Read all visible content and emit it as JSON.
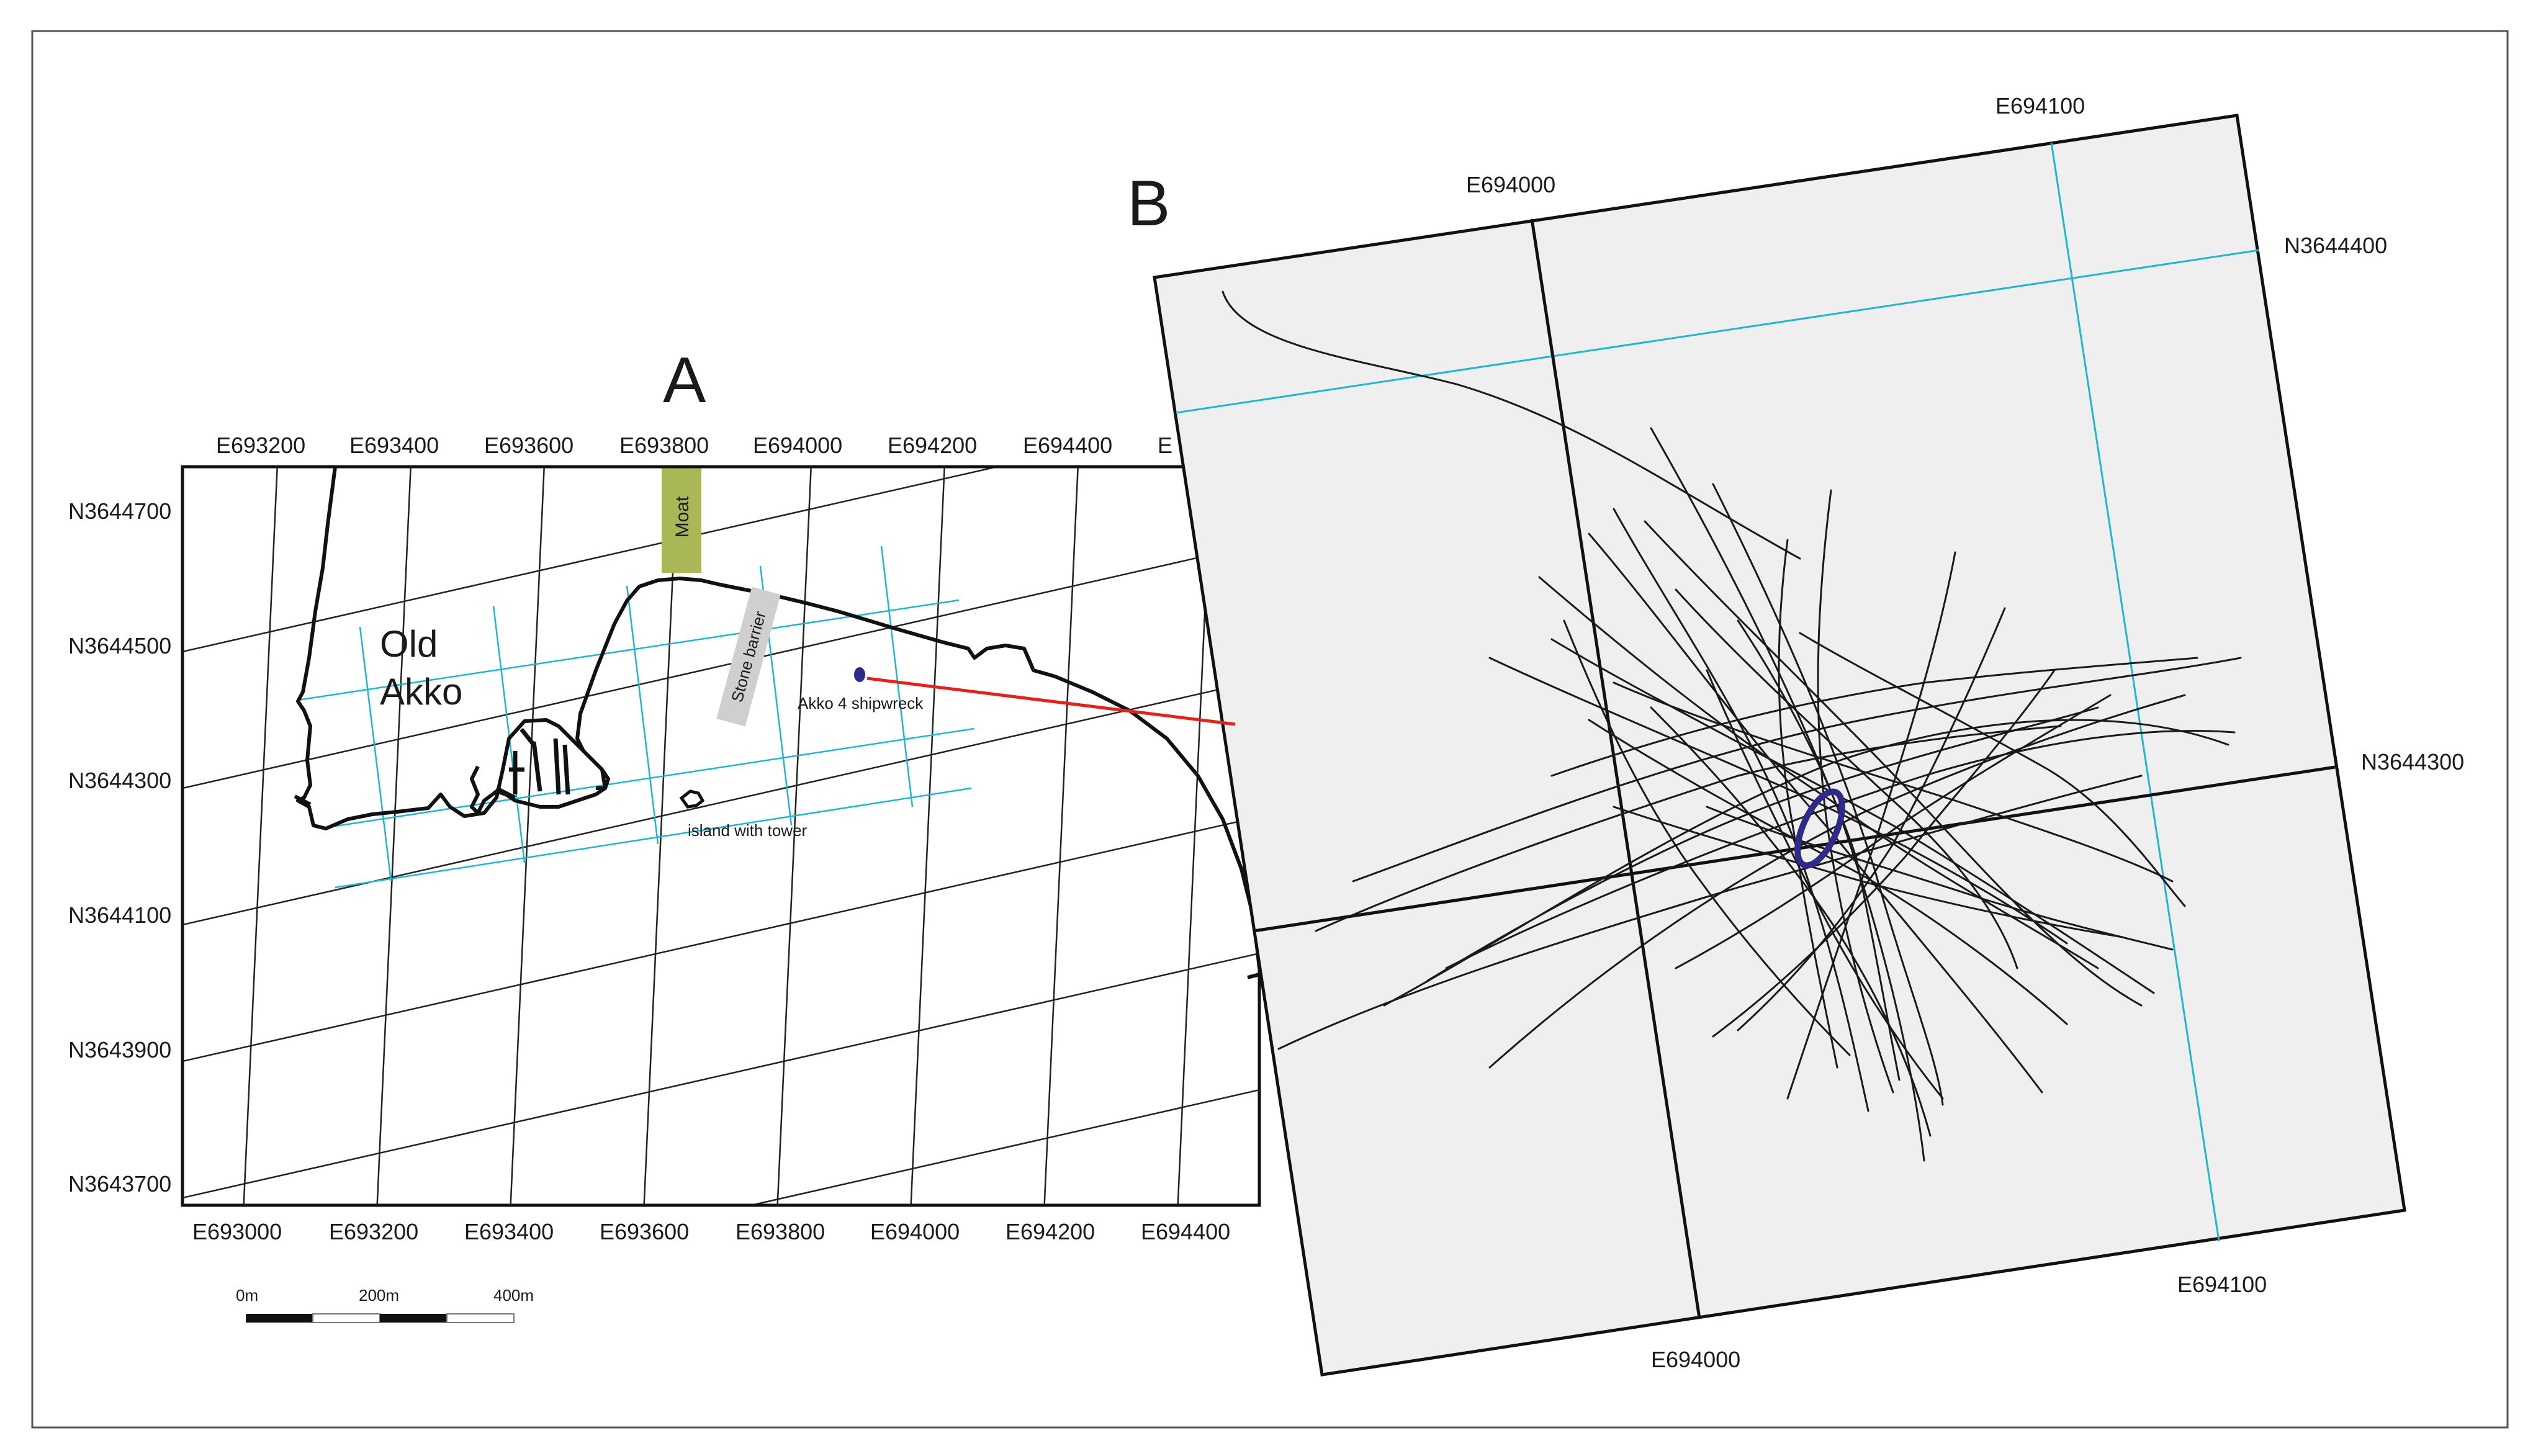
{
  "panel_a": {
    "letter": "A",
    "top_x_labels": [
      "E693200",
      "E693400",
      "E693600",
      "E693800",
      "E694000",
      "E694200",
      "E694400",
      "E"
    ],
    "bottom_x_labels": [
      "E693000",
      "E693200",
      "E693400",
      "E693600",
      "E693800",
      "E694000",
      "E694200",
      "E694400"
    ],
    "y_labels": [
      "N3644700",
      "N3644500",
      "N3644300",
      "N3644100",
      "N3643900",
      "N3643700"
    ],
    "place_line1": "Old",
    "place_line2": "Akko",
    "moat_label": "Moat",
    "stone_barrier_label": "Stone barrier",
    "shipwreck_label": "Akko 4 shipwreck",
    "island_label": "island with tower",
    "scale_labels": [
      "0m",
      "200m",
      "400m"
    ]
  },
  "panel_b": {
    "letter": "B",
    "labels": {
      "top_left_e": "E694000",
      "top_right_e": "E694100",
      "right_top_n": "N3644400",
      "right_mid_n": "N3644300",
      "bottom_right_e": "E694100",
      "bottom_mid_e": "E694000"
    }
  },
  "colors": {
    "grid_cyan": "#1fb6d1",
    "frame": "#1a1a1a",
    "moat": "#a9b756",
    "barrier": "#cfcfcf",
    "callout": "#e0231c",
    "wreck": "#2e2a8a",
    "panel_b_fill": "#efefef"
  }
}
